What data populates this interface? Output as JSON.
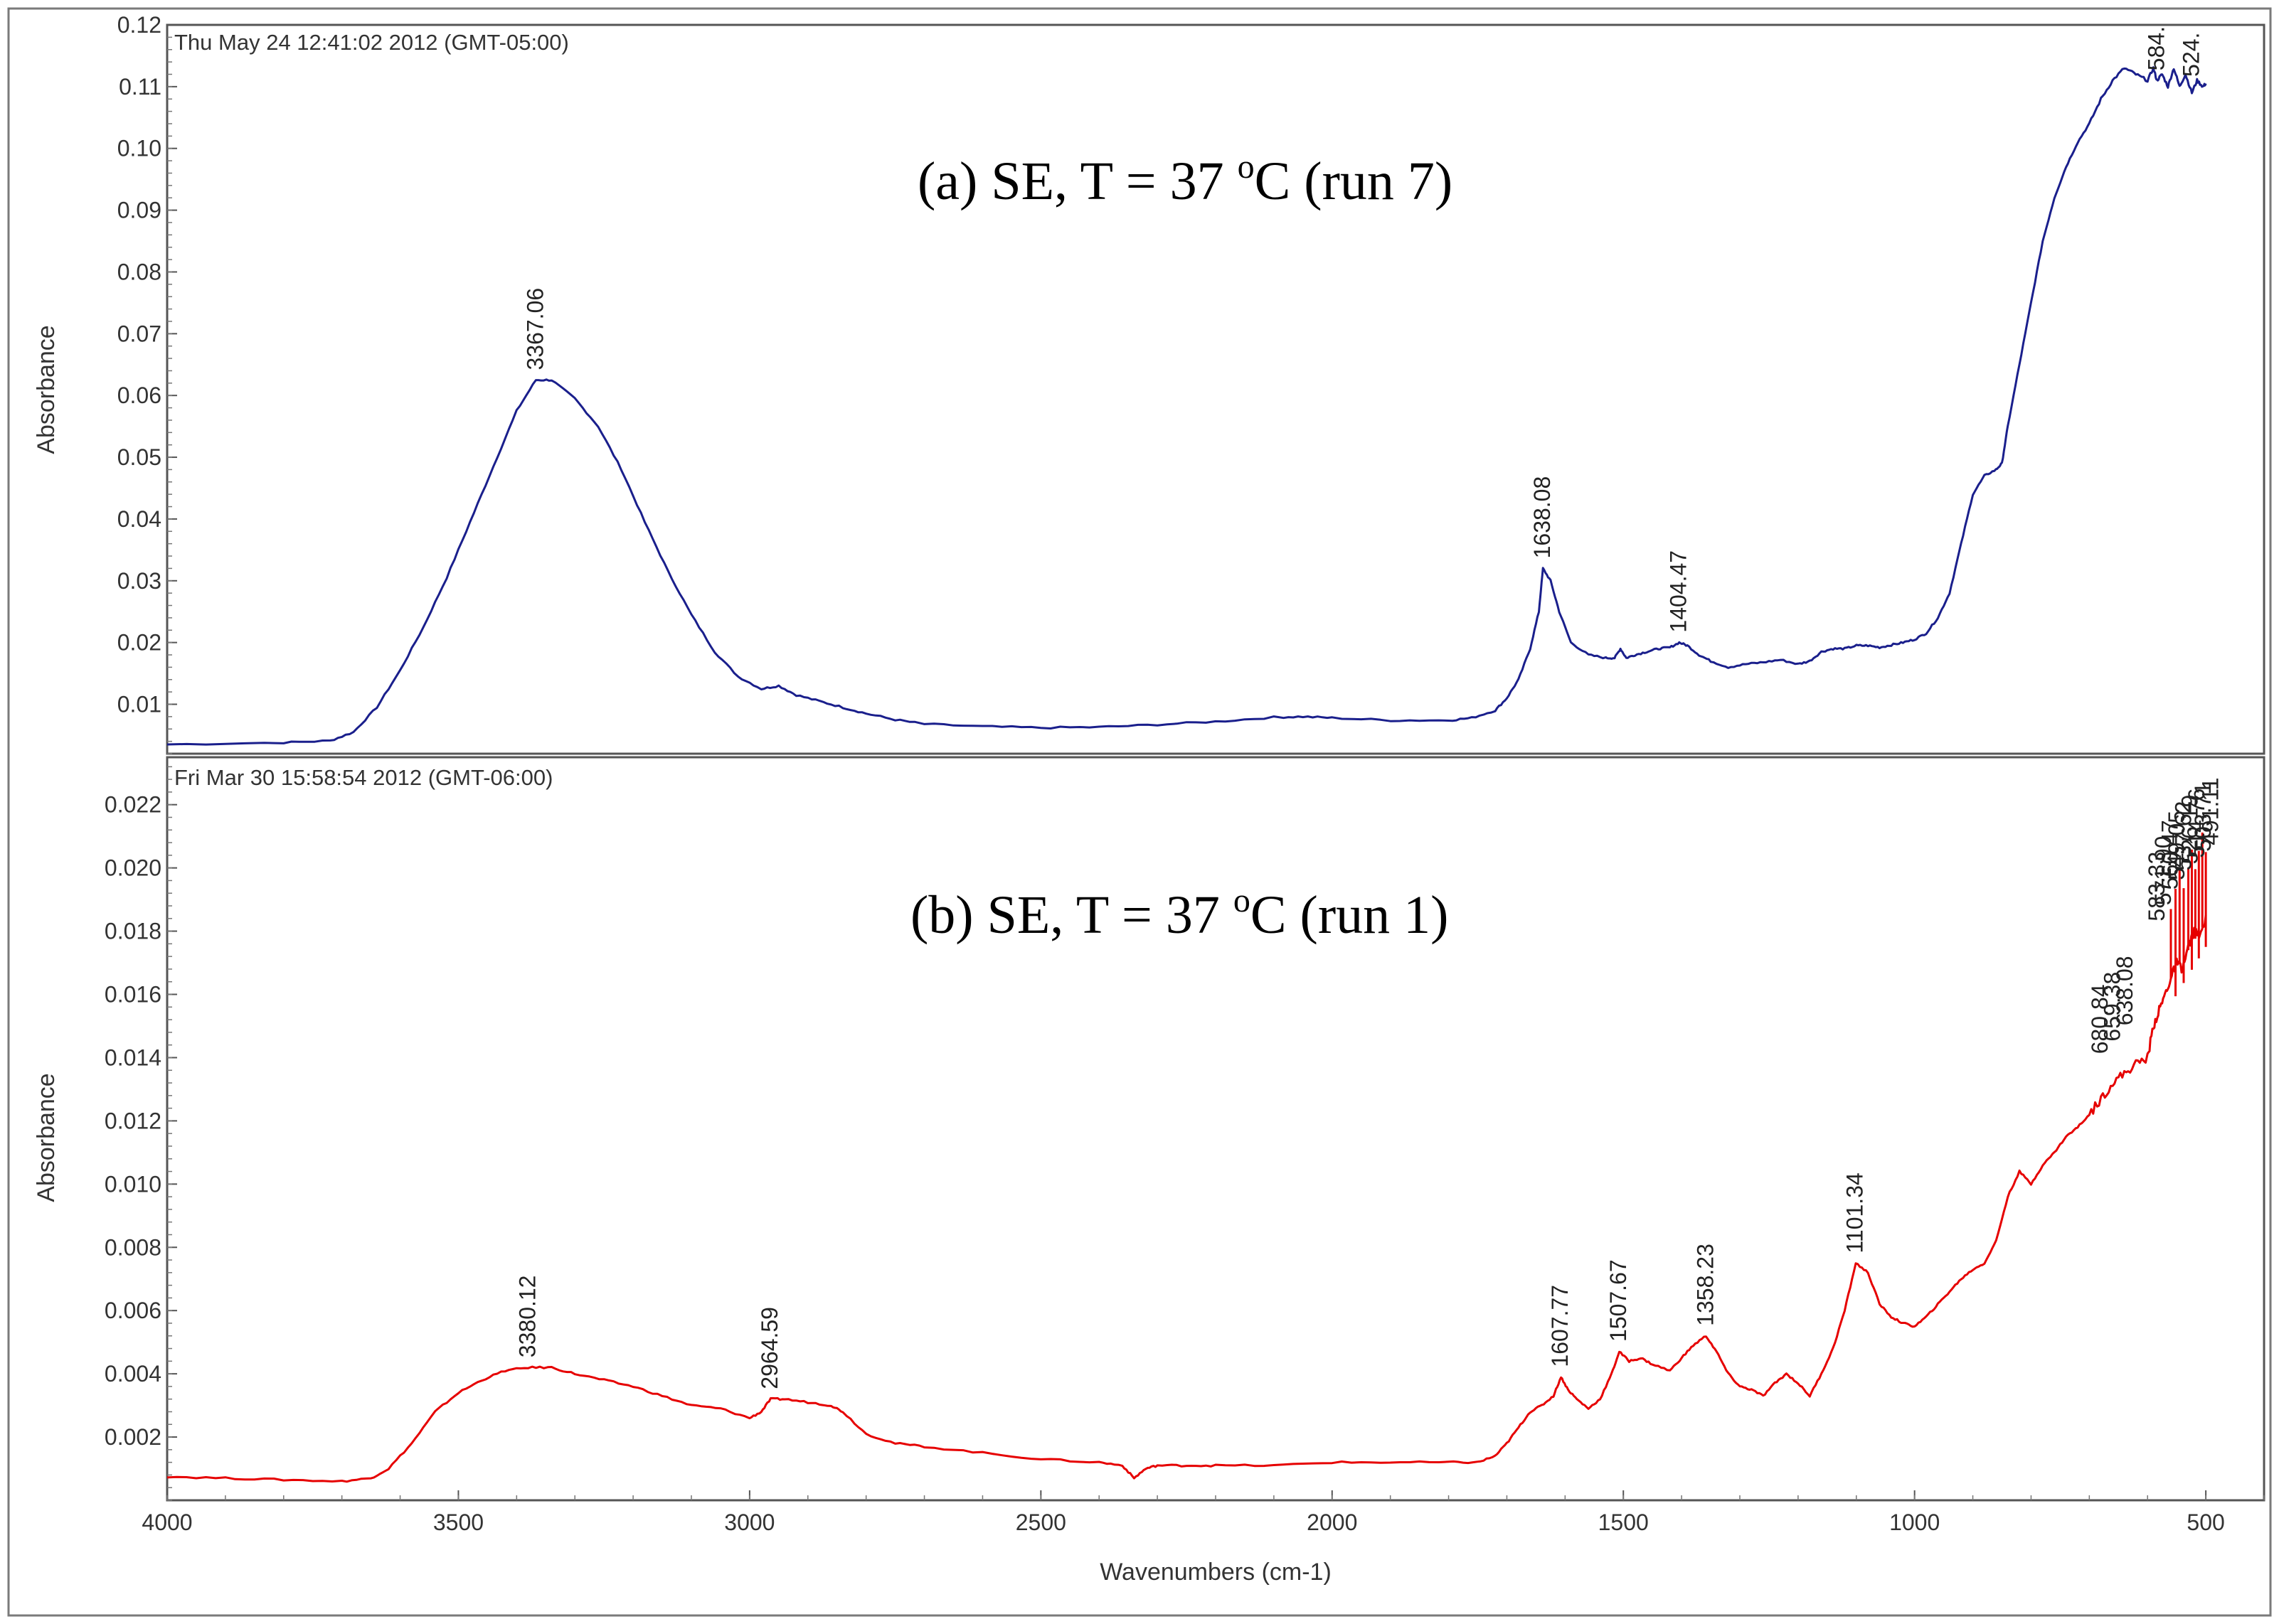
{
  "figure": {
    "xlabel": "Wavenumbers (cm-1)"
  },
  "chart_data": [
    {
      "type": "line",
      "panel": "top",
      "timestamp": "Thu May 24 12:41:02 2012 (GMT-05:00)",
      "title_parts": [
        "(a)   SE,  T = 37 ",
        "o",
        "C  (run 7)"
      ],
      "ylabel": "Absorbance",
      "xlim": [
        4000,
        400
      ],
      "ylim": [
        0.002,
        0.12
      ],
      "yticks": [
        "0.01",
        "0.02",
        "0.03",
        "0.04",
        "0.05",
        "0.06",
        "0.07",
        "0.08",
        "0.09",
        "0.10",
        "0.11",
        "0.12"
      ],
      "yticks_values": [
        0.01,
        0.02,
        0.03,
        0.04,
        0.05,
        0.06,
        0.07,
        0.08,
        0.09,
        0.1,
        0.11,
        0.12
      ],
      "color": "#1a1f8c",
      "series": [
        {
          "name": "SE run 7",
          "x": [
            4000,
            3800,
            3720,
            3680,
            3640,
            3600,
            3560,
            3520,
            3480,
            3440,
            3400,
            3367,
            3340,
            3300,
            3260,
            3220,
            3180,
            3140,
            3100,
            3060,
            3020,
            2980,
            2950,
            2920,
            2880,
            2840,
            2800,
            2750,
            2700,
            2600,
            2500,
            2400,
            2300,
            2200,
            2100,
            2050,
            2000,
            1900,
            1800,
            1760,
            1720,
            1700,
            1680,
            1660,
            1645,
            1638,
            1625,
            1610,
            1590,
            1560,
            1530,
            1515,
            1505,
            1495,
            1480,
            1460,
            1440,
            1420,
            1404,
            1390,
            1370,
            1350,
            1320,
            1290,
            1260,
            1230,
            1200,
            1180,
            1160,
            1140,
            1120,
            1100,
            1080,
            1060,
            1040,
            1020,
            1000,
            980,
            960,
            940,
            920,
            900,
            880,
            860,
            850,
            840,
            820,
            800,
            780,
            760,
            740,
            720,
            700,
            680,
            660,
            640,
            620,
            600,
            590,
            584,
            575,
            565,
            555,
            545,
            535,
            524,
            515,
            505,
            500
          ],
          "y": [
            0.0035,
            0.0038,
            0.0041,
            0.0055,
            0.0095,
            0.0155,
            0.0225,
            0.0305,
            0.0395,
            0.0485,
            0.0575,
            0.0625,
            0.0625,
            0.0595,
            0.055,
            0.048,
            0.0395,
            0.0315,
            0.0245,
            0.0185,
            0.0145,
            0.0125,
            0.013,
            0.0115,
            0.0105,
            0.0095,
            0.0085,
            0.0075,
            0.0068,
            0.0064,
            0.0062,
            0.0063,
            0.0067,
            0.0072,
            0.0079,
            0.008,
            0.0078,
            0.0074,
            0.0074,
            0.0078,
            0.009,
            0.011,
            0.014,
            0.019,
            0.025,
            0.032,
            0.03,
            0.025,
            0.02,
            0.018,
            0.0175,
            0.0175,
            0.019,
            0.0175,
            0.018,
            0.0185,
            0.019,
            0.0192,
            0.02,
            0.0195,
            0.018,
            0.017,
            0.016,
            0.0165,
            0.0168,
            0.0172,
            0.0165,
            0.017,
            0.0185,
            0.019,
            0.019,
            0.0195,
            0.0195,
            0.0192,
            0.0196,
            0.02,
            0.0205,
            0.0215,
            0.024,
            0.028,
            0.036,
            0.044,
            0.047,
            0.048,
            0.049,
            0.055,
            0.065,
            0.075,
            0.085,
            0.092,
            0.097,
            0.101,
            0.104,
            0.108,
            0.111,
            0.113,
            0.112,
            0.111,
            0.113,
            0.111,
            0.112,
            0.11,
            0.113,
            0.11,
            0.112,
            0.109,
            0.111,
            0.11,
            0.1105
          ]
        }
      ],
      "annotations": [
        {
          "x": 3367.06,
          "y": 0.0625,
          "label": "3367.06"
        },
        {
          "x": 1638.08,
          "y": 0.032,
          "label": "1638.08"
        },
        {
          "x": 1404.47,
          "y": 0.02,
          "label": "1404.47"
        },
        {
          "x": 584,
          "y": 0.111,
          "label": "584."
        },
        {
          "x": 524,
          "y": 0.11,
          "label": "524."
        }
      ]
    },
    {
      "type": "line",
      "panel": "bottom",
      "timestamp": "Fri Mar 30 15:58:54 2012 (GMT-06:00)",
      "title_parts": [
        "(b)  SE,  T = 37 ",
        "o",
        "C  (run 1)"
      ],
      "ylabel": "Absorbance",
      "xlabel": "Wavenumbers (cm-1)",
      "xlim": [
        4000,
        400
      ],
      "ylim": [
        0.0,
        0.0235
      ],
      "xticks": [
        "4000",
        "3500",
        "3000",
        "2500",
        "2000",
        "1500",
        "1000",
        "500"
      ],
      "xticks_values": [
        4000,
        3500,
        3000,
        2500,
        2000,
        1500,
        1000,
        500
      ],
      "yticks": [
        "0.002",
        "0.004",
        "0.006",
        "0.008",
        "0.010",
        "0.012",
        "0.014",
        "0.016",
        "0.018",
        "0.020",
        "0.022"
      ],
      "yticks_values": [
        0.002,
        0.004,
        0.006,
        0.008,
        0.01,
        0.012,
        0.014,
        0.016,
        0.018,
        0.02,
        0.022
      ],
      "color": "#e60000",
      "series": [
        {
          "name": "SE run 1",
          "x": [
            4000,
            3900,
            3800,
            3700,
            3650,
            3620,
            3580,
            3540,
            3500,
            3460,
            3420,
            3380,
            3340,
            3300,
            3250,
            3200,
            3150,
            3100,
            3050,
            3000,
            2980,
            2964,
            2940,
            2900,
            2860,
            2840,
            2800,
            2750,
            2700,
            2600,
            2500,
            2400,
            2360,
            2340,
            2320,
            2300,
            2250,
            2200,
            2100,
            2000,
            1900,
            1800,
            1750,
            1720,
            1700,
            1680,
            1660,
            1640,
            1620,
            1607,
            1595,
            1580,
            1560,
            1540,
            1520,
            1507,
            1490,
            1470,
            1450,
            1420,
            1400,
            1380,
            1358,
            1340,
            1320,
            1300,
            1280,
            1260,
            1240,
            1220,
            1200,
            1180,
            1160,
            1140,
            1120,
            1101,
            1080,
            1060,
            1040,
            1020,
            1000,
            980,
            960,
            940,
            920,
            900,
            880,
            860,
            840,
            820,
            800,
            780,
            760,
            740,
            720,
            700,
            680,
            660,
            640,
            620,
            600,
            590,
            580,
            570,
            560,
            550,
            540,
            530,
            520,
            510,
            500
          ],
          "y": [
            0.00075,
            0.0007,
            0.00065,
            0.0006,
            0.0007,
            0.001,
            0.0018,
            0.0028,
            0.0034,
            0.0038,
            0.0041,
            0.0042,
            0.0042,
            0.004,
            0.0038,
            0.0036,
            0.0033,
            0.003,
            0.0029,
            0.0026,
            0.0028,
            0.0032,
            0.0032,
            0.0031,
            0.003,
            0.0028,
            0.0021,
            0.0018,
            0.0017,
            0.0015,
            0.0013,
            0.0012,
            0.0011,
            0.0007,
            0.001,
            0.0011,
            0.0011,
            0.0011,
            0.0011,
            0.0012,
            0.0012,
            0.0012,
            0.0012,
            0.0014,
            0.0018,
            0.0023,
            0.0028,
            0.003,
            0.0033,
            0.0039,
            0.0035,
            0.0032,
            0.0029,
            0.0032,
            0.004,
            0.0047,
            0.0044,
            0.0045,
            0.0043,
            0.0041,
            0.0045,
            0.0049,
            0.0052,
            0.0047,
            0.004,
            0.0036,
            0.0035,
            0.0033,
            0.0037,
            0.004,
            0.0037,
            0.0033,
            0.004,
            0.0048,
            0.006,
            0.0075,
            0.0072,
            0.0062,
            0.0058,
            0.0056,
            0.0055,
            0.0058,
            0.0062,
            0.0066,
            0.007,
            0.0073,
            0.0075,
            0.0082,
            0.0096,
            0.0104,
            0.01,
            0.0106,
            0.011,
            0.0115,
            0.0118,
            0.0122,
            0.0127,
            0.0132,
            0.0135,
            0.0138,
            0.014,
            0.015,
            0.0155,
            0.016,
            0.0165,
            0.017,
            0.0168,
            0.0175,
            0.018,
            0.0178,
            0.0185
          ]
        }
      ],
      "annotations": [
        {
          "x": 3380.12,
          "y": 0.0042,
          "label": "3380.12"
        },
        {
          "x": 2964.59,
          "y": 0.0032,
          "label": "2964.59"
        },
        {
          "x": 1607.77,
          "y": 0.0039,
          "label": "1607.77"
        },
        {
          "x": 1507.67,
          "y": 0.0047,
          "label": "1507.67"
        },
        {
          "x": 1358.23,
          "y": 0.0052,
          "label": "1358.23"
        },
        {
          "x": 1101.34,
          "y": 0.0075,
          "label": "1101.34"
        },
        {
          "x": 680.84,
          "y": 0.0138,
          "label": "680.84"
        },
        {
          "x": 659.38,
          "y": 0.0142,
          "label": "659.38"
        },
        {
          "x": 638.08,
          "y": 0.0147,
          "label": "638.08"
        },
        {
          "x": 583.33,
          "y": 0.018,
          "label": "583.33"
        },
        {
          "x": 571.9,
          "y": 0.0185,
          "label": "571.90"
        },
        {
          "x": 560.47,
          "y": 0.019,
          "label": "560.47"
        },
        {
          "x": 549.05,
          "y": 0.0193,
          "label": "549.05"
        },
        {
          "x": 537.62,
          "y": 0.0196,
          "label": "537.62"
        },
        {
          "x": 526.19,
          "y": 0.0198,
          "label": "526.19"
        },
        {
          "x": 514.76,
          "y": 0.02,
          "label": "514.76"
        },
        {
          "x": 503.71,
          "y": 0.0202,
          "label": "503.71"
        },
        {
          "x": 491.11,
          "y": 0.0204,
          "label": "491.11"
        }
      ]
    }
  ]
}
